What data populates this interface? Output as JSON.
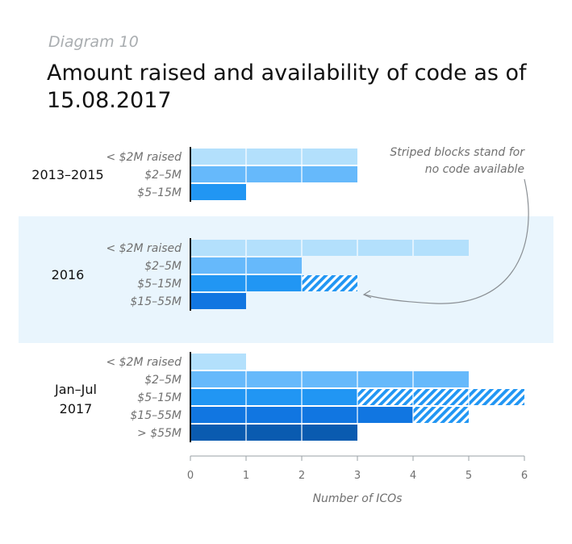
{
  "header": {
    "diagram_label": "Diagram 10",
    "title": "Amount raised and availability of code as of 15.08.2017"
  },
  "chart_data": {
    "type": "bar",
    "orientation": "horizontal",
    "stacked": true,
    "xlabel": "Number of ICOs",
    "xlim": [
      0,
      6
    ],
    "xticks": [
      "0",
      "1",
      "2",
      "3",
      "4",
      "5",
      "6"
    ],
    "legend_note": "Striped blocks stand for no code available",
    "segments": [
      "code available",
      "no code available"
    ],
    "groups": [
      {
        "name": "2013–2015",
        "highlighted": false,
        "bars": [
          {
            "label": "< $2M raised",
            "code": 3,
            "no_code": 0,
            "color": "#b3e0fc"
          },
          {
            "label": "$2–5M",
            "code": 3,
            "no_code": 0,
            "color": "#66b9fb"
          },
          {
            "label": "$5–15M",
            "code": 1,
            "no_code": 0,
            "color": "#2196f3"
          }
        ]
      },
      {
        "name": "2016",
        "highlighted": true,
        "bars": [
          {
            "label": "< $2M raised",
            "code": 5,
            "no_code": 0,
            "color": "#b3e0fc"
          },
          {
            "label": "$2–5M",
            "code": 2,
            "no_code": 0,
            "color": "#66b9fb"
          },
          {
            "label": "$5–15M",
            "code": 2,
            "no_code": 1,
            "color": "#2196f3"
          },
          {
            "label": "$15–55M",
            "code": 1,
            "no_code": 0,
            "color": "#1176e1"
          }
        ]
      },
      {
        "name": "Jan–Jul 2017",
        "highlighted": false,
        "bars": [
          {
            "label": "< $2M raised",
            "code": 1,
            "no_code": 0,
            "color": "#b3e0fc"
          },
          {
            "label": "$2–5M",
            "code": 5,
            "no_code": 0,
            "color": "#66b9fb"
          },
          {
            "label": "$5–15M",
            "code": 3,
            "no_code": 3,
            "color": "#2196f3"
          },
          {
            "label": "$15–55M",
            "code": 4,
            "no_code": 1,
            "color": "#1176e1"
          },
          {
            "label": "> $55M",
            "code": 3,
            "no_code": 0,
            "color": "#0a5bb0"
          }
        ]
      }
    ],
    "colors": {
      "highlight_band": "#e9f5fd",
      "gridline": "#ffffff",
      "axis": "#111111"
    }
  }
}
